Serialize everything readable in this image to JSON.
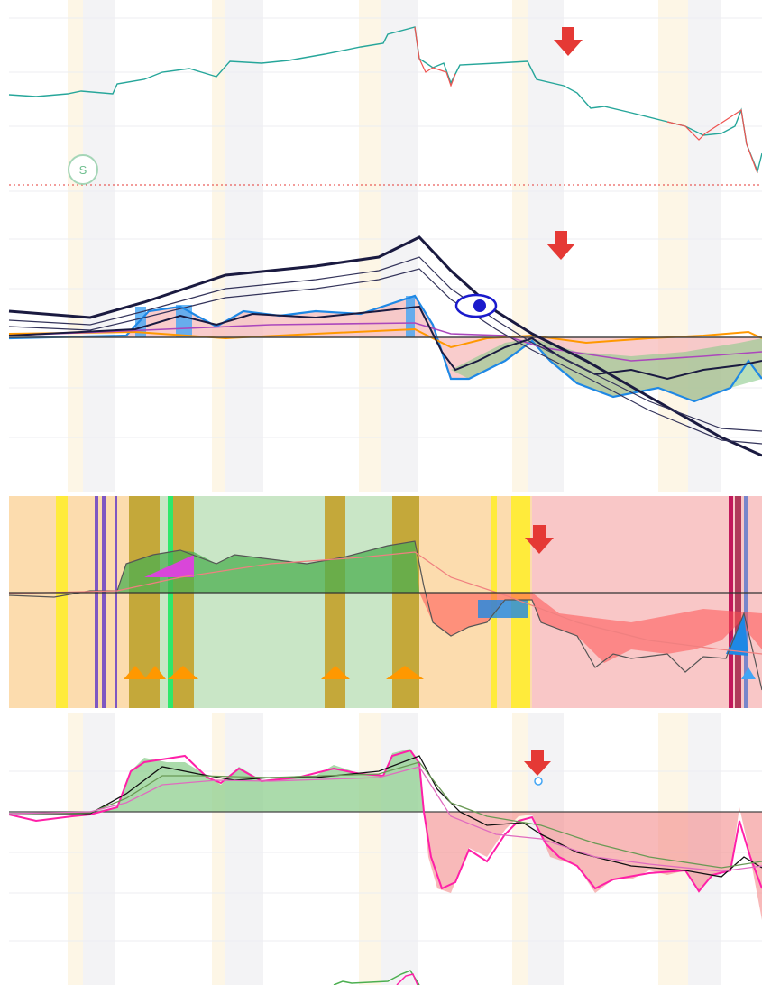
{
  "marker": {
    "label": "S"
  }
}
